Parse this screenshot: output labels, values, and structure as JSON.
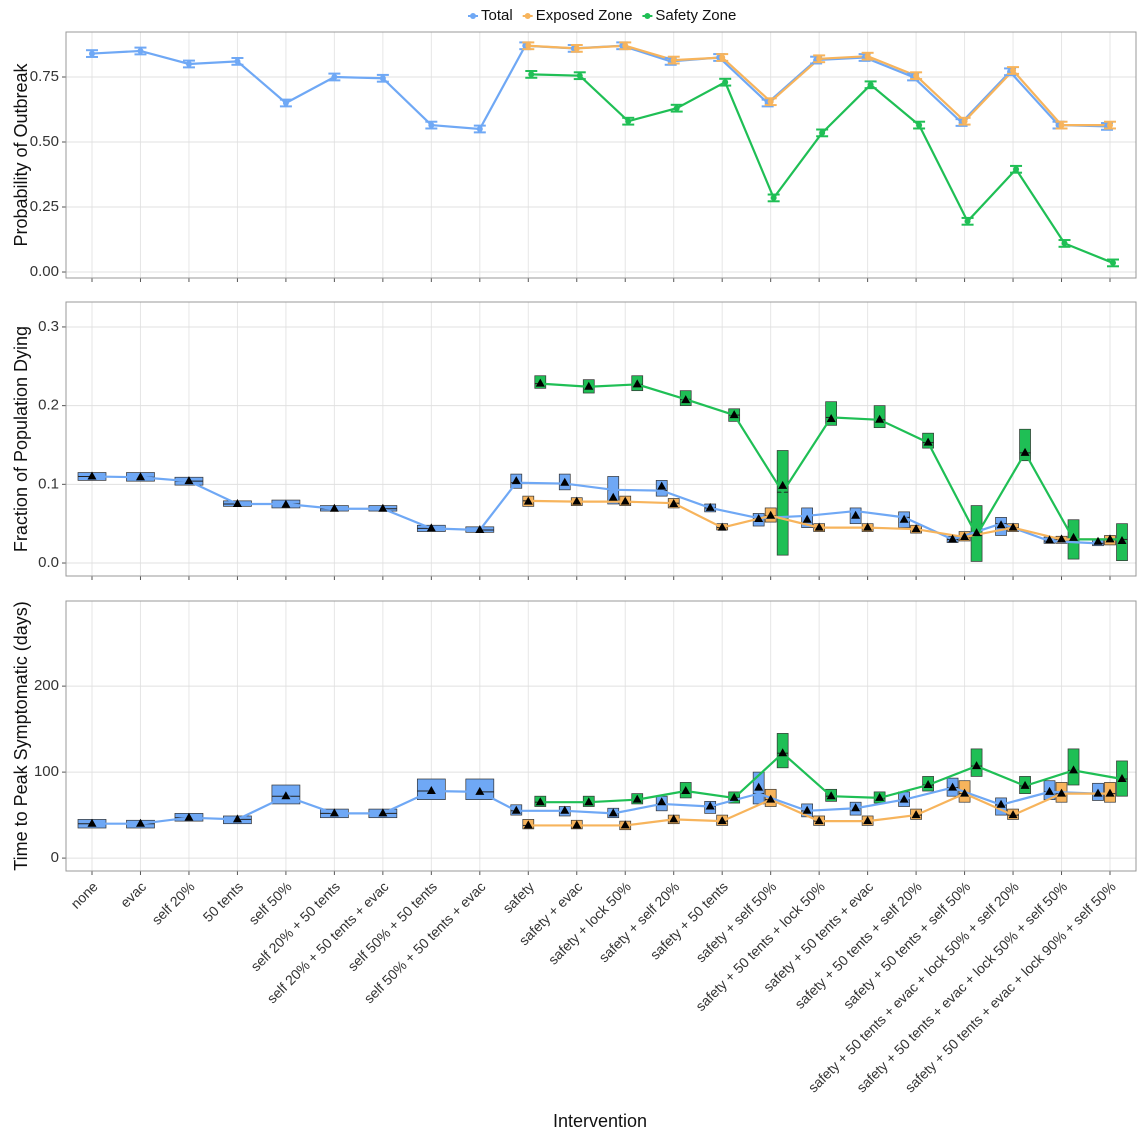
{
  "chart_data": [
    {
      "type": "line",
      "ylabel": "Probability of Outbreak",
      "ylim": [
        -0.023,
        0.923
      ],
      "yticks": [
        {
          "value": 0,
          "label": "0.00"
        },
        0.25,
        {
          "value": 0.5,
          "label": "0.50"
        },
        0.75
      ],
      "grid": true,
      "series": [
        {
          "name": "Total",
          "color": "#6fa8f5",
          "values": [
            0.84,
            0.85,
            0.8,
            0.81,
            0.65,
            0.75,
            0.745,
            0.565,
            0.55,
            0.87,
            0.86,
            0.87,
            0.81,
            0.825,
            0.65,
            0.815,
            0.825,
            0.75,
            0.575,
            0.77,
            0.565,
            0.56
          ],
          "errors": [
            0.013,
            0.013,
            0.013,
            0.013,
            0.013,
            0.013,
            0.013,
            0.013,
            0.013,
            0.013,
            0.013,
            0.013,
            0.013,
            0.013,
            0.013,
            0.013,
            0.013,
            0.013,
            0.013,
            0.013,
            0.013,
            0.013
          ]
        },
        {
          "name": "Exposed Zone",
          "color": "#f7b45c",
          "values": [
            null,
            null,
            null,
            null,
            null,
            null,
            null,
            null,
            null,
            0.87,
            0.86,
            0.87,
            0.815,
            0.825,
            0.655,
            0.82,
            0.83,
            0.755,
            0.58,
            0.775,
            0.565,
            0.565
          ],
          "errors": [
            null,
            null,
            null,
            null,
            null,
            null,
            null,
            null,
            null,
            0.013,
            0.013,
            0.013,
            0.013,
            0.013,
            0.013,
            0.013,
            0.013,
            0.013,
            0.013,
            0.013,
            0.013,
            0.013
          ]
        },
        {
          "name": "Safety Zone",
          "color": "#1fbf55",
          "values": [
            null,
            null,
            null,
            null,
            null,
            null,
            null,
            null,
            null,
            0.76,
            0.755,
            0.58,
            0.63,
            0.73,
            0.285,
            0.535,
            0.72,
            0.565,
            0.195,
            0.395,
            0.11,
            0.035
          ],
          "errors": [
            null,
            null,
            null,
            null,
            null,
            null,
            null,
            null,
            null,
            0.013,
            0.013,
            0.013,
            0.013,
            0.013,
            0.013,
            0.013,
            0.013,
            0.013,
            0.013,
            0.013,
            0.013,
            0.013
          ]
        }
      ]
    },
    {
      "type": "box",
      "ylabel": "Fraction of Population Dying",
      "ylim": [
        -0.0165,
        0.3317
      ],
      "yticks": [
        {
          "value": 0,
          "label": "0.0"
        },
        0.1,
        0.2,
        0.3
      ],
      "grid": true,
      "series": [
        {
          "color": "#6fa8f5",
          "mean": [
            0.11,
            0.109,
            0.104,
            0.075,
            0.074,
            0.069,
            0.069,
            0.044,
            0.042,
            0.104,
            0.102,
            0.083,
            0.097,
            0.07,
            0.056,
            0.055,
            0.06,
            0.055,
            0.03,
            0.048,
            0.029,
            0.027
          ],
          "q1": [
            0.105,
            0.104,
            0.099,
            0.072,
            0.07,
            0.066,
            0.066,
            0.04,
            0.039,
            0.095,
            0.093,
            0.075,
            0.085,
            0.065,
            0.047,
            0.045,
            0.05,
            0.045,
            0.026,
            0.035,
            0.025,
            0.022
          ],
          "median": [
            0.11,
            0.109,
            0.104,
            0.075,
            0.075,
            0.069,
            0.069,
            0.044,
            0.042,
            0.102,
            0.101,
            0.093,
            0.092,
            0.07,
            0.057,
            0.06,
            0.066,
            0.058,
            0.03,
            0.05,
            0.028,
            0.025
          ],
          "q3": [
            0.115,
            0.115,
            0.109,
            0.079,
            0.08,
            0.073,
            0.073,
            0.048,
            0.046,
            0.113,
            0.113,
            0.11,
            0.105,
            0.075,
            0.063,
            0.07,
            0.07,
            0.065,
            0.034,
            0.058,
            0.033,
            0.03
          ]
        },
        {
          "color": "#f7b45c",
          "mean": [
            null,
            null,
            null,
            null,
            null,
            null,
            null,
            null,
            null,
            0.078,
            0.078,
            0.078,
            0.075,
            0.045,
            0.06,
            0.045,
            0.045,
            0.043,
            0.033,
            0.045,
            0.03,
            0.03
          ],
          "q1": [
            null,
            null,
            null,
            null,
            null,
            null,
            null,
            null,
            null,
            0.072,
            0.073,
            0.073,
            0.07,
            0.042,
            0.052,
            0.04,
            0.04,
            0.038,
            0.028,
            0.04,
            0.025,
            0.023
          ],
          "median": [
            null,
            null,
            null,
            null,
            null,
            null,
            null,
            null,
            null,
            0.079,
            0.078,
            0.078,
            0.076,
            0.045,
            0.06,
            0.045,
            0.045,
            0.043,
            0.033,
            0.045,
            0.03,
            0.03
          ],
          "q3": [
            null,
            null,
            null,
            null,
            null,
            null,
            null,
            null,
            null,
            0.085,
            0.083,
            0.085,
            0.082,
            0.05,
            0.07,
            0.05,
            0.05,
            0.048,
            0.04,
            0.05,
            0.034,
            0.035
          ]
        },
        {
          "color": "#1fbf55",
          "mean": [
            null,
            null,
            null,
            null,
            null,
            null,
            null,
            null,
            null,
            0.228,
            0.224,
            0.227,
            0.207,
            0.188,
            0.098,
            0.183,
            0.182,
            0.153,
            0.038,
            0.14,
            0.032,
            0.028
          ],
          "q1": [
            null,
            null,
            null,
            null,
            null,
            null,
            null,
            null,
            null,
            0.222,
            0.216,
            0.219,
            0.2,
            0.18,
            0.01,
            0.175,
            0.172,
            0.146,
            0.002,
            0.13,
            0.005,
            0.003
          ],
          "median": [
            null,
            null,
            null,
            null,
            null,
            null,
            null,
            null,
            null,
            0.228,
            0.224,
            0.227,
            0.208,
            0.188,
            0.09,
            0.185,
            0.182,
            0.153,
            0.035,
            0.14,
            0.03,
            0.03
          ],
          "q3": [
            null,
            null,
            null,
            null,
            null,
            null,
            null,
            null,
            null,
            0.238,
            0.233,
            0.238,
            0.219,
            0.196,
            0.143,
            0.205,
            0.2,
            0.165,
            0.073,
            0.17,
            0.055,
            0.05
          ]
        }
      ]
    },
    {
      "type": "box",
      "ylabel": "Time to Peak Symptomatic (days)",
      "xlabel": "Intervention",
      "categories": [
        "none",
        "evac",
        "self 20%",
        "50 tents",
        "self 50%",
        "self 20% + 50 tents",
        "self 20% + 50 tents + evac",
        "self 50% + 50 tents",
        "self 50% + 50 tents + evac",
        "safety",
        "safety + evac",
        "safety + lock 50%",
        "safety + self 20%",
        "safety + 50 tents",
        "safety + self 50%",
        "safety + 50 tents + lock 50%",
        "safety + 50 tents + evac",
        "safety + 50 tents + self 20%",
        "safety + 50 tents + self 50%",
        "safety + 50 tents + evac + lock 50% + self 20%",
        "safety + 50 tents + evac + lock 50% + self 50%",
        "safety + 50 tents + evac + lock 90% + self 50%"
      ],
      "ylim": [
        -15,
        299
      ],
      "yticks": [
        0,
        100,
        200
      ],
      "grid": true,
      "series": [
        {
          "color": "#6fa8f5",
          "mean": [
            40,
            40,
            47,
            45,
            72,
            52,
            52,
            78,
            77,
            55,
            55,
            52,
            65,
            60,
            82,
            55,
            58,
            68,
            82,
            62,
            77,
            75
          ],
          "q1": [
            35,
            35,
            43,
            40,
            63,
            47,
            47,
            68,
            68,
            50,
            49,
            47,
            55,
            52,
            63,
            48,
            50,
            60,
            72,
            50,
            68,
            67
          ],
          "median": [
            40,
            40,
            47,
            45,
            72,
            52,
            52,
            78,
            77,
            55,
            55,
            52,
            63,
            60,
            75,
            55,
            58,
            68,
            82,
            62,
            77,
            75
          ],
          "q3": [
            45,
            44,
            52,
            49,
            85,
            57,
            57,
            92,
            92,
            62,
            60,
            58,
            72,
            66,
            100,
            63,
            65,
            77,
            93,
            70,
            90,
            87
          ]
        },
        {
          "color": "#f7b45c",
          "mean": [
            null,
            null,
            null,
            null,
            null,
            null,
            null,
            null,
            null,
            38,
            38,
            38,
            45,
            43,
            68,
            43,
            43,
            50,
            75,
            50,
            75,
            75
          ],
          "q1": [
            null,
            null,
            null,
            null,
            null,
            null,
            null,
            null,
            null,
            34,
            34,
            33,
            40,
            38,
            60,
            38,
            38,
            45,
            65,
            45,
            65,
            65
          ],
          "median": [
            null,
            null,
            null,
            null,
            null,
            null,
            null,
            null,
            null,
            38,
            38,
            38,
            45,
            43,
            68,
            43,
            43,
            50,
            75,
            50,
            75,
            75
          ],
          "q3": [
            null,
            null,
            null,
            null,
            null,
            null,
            null,
            null,
            null,
            45,
            44,
            43,
            50,
            50,
            80,
            49,
            49,
            57,
            90,
            57,
            88,
            88
          ]
        },
        {
          "color": "#1fbf55",
          "mean": [
            null,
            null,
            null,
            null,
            null,
            null,
            null,
            null,
            null,
            65,
            65,
            68,
            78,
            70,
            122,
            72,
            70,
            85,
            107,
            84,
            102,
            92
          ],
          "q1": [
            null,
            null,
            null,
            null,
            null,
            null,
            null,
            null,
            null,
            60,
            60,
            63,
            70,
            64,
            105,
            66,
            64,
            78,
            95,
            75,
            85,
            72
          ],
          "median": [
            null,
            null,
            null,
            null,
            null,
            null,
            null,
            null,
            null,
            65,
            65,
            68,
            78,
            70,
            122,
            72,
            70,
            85,
            107,
            84,
            102,
            92
          ],
          "q3": [
            null,
            null,
            null,
            null,
            null,
            null,
            null,
            null,
            null,
            72,
            72,
            75,
            88,
            77,
            145,
            80,
            77,
            95,
            127,
            95,
            127,
            113
          ]
        }
      ]
    }
  ]
}
